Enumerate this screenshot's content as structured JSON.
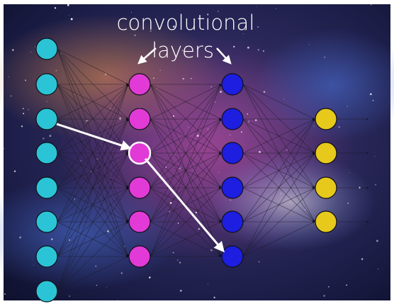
{
  "diagram": {
    "title_line1": "convolutional",
    "title_line2": "layers"
  },
  "colors": {
    "input": "#2bc4d6",
    "conv1": "#e23ad6",
    "conv2": "#1d1ee0",
    "output": "#e6c91b",
    "edge": "#1a1a24",
    "highlight": "#ffffff"
  },
  "layers": [
    {
      "name": "input",
      "nodes": 8
    },
    {
      "name": "conv1",
      "nodes": 6
    },
    {
      "name": "conv2",
      "nodes": 6
    },
    {
      "name": "output",
      "nodes": 4
    }
  ]
}
